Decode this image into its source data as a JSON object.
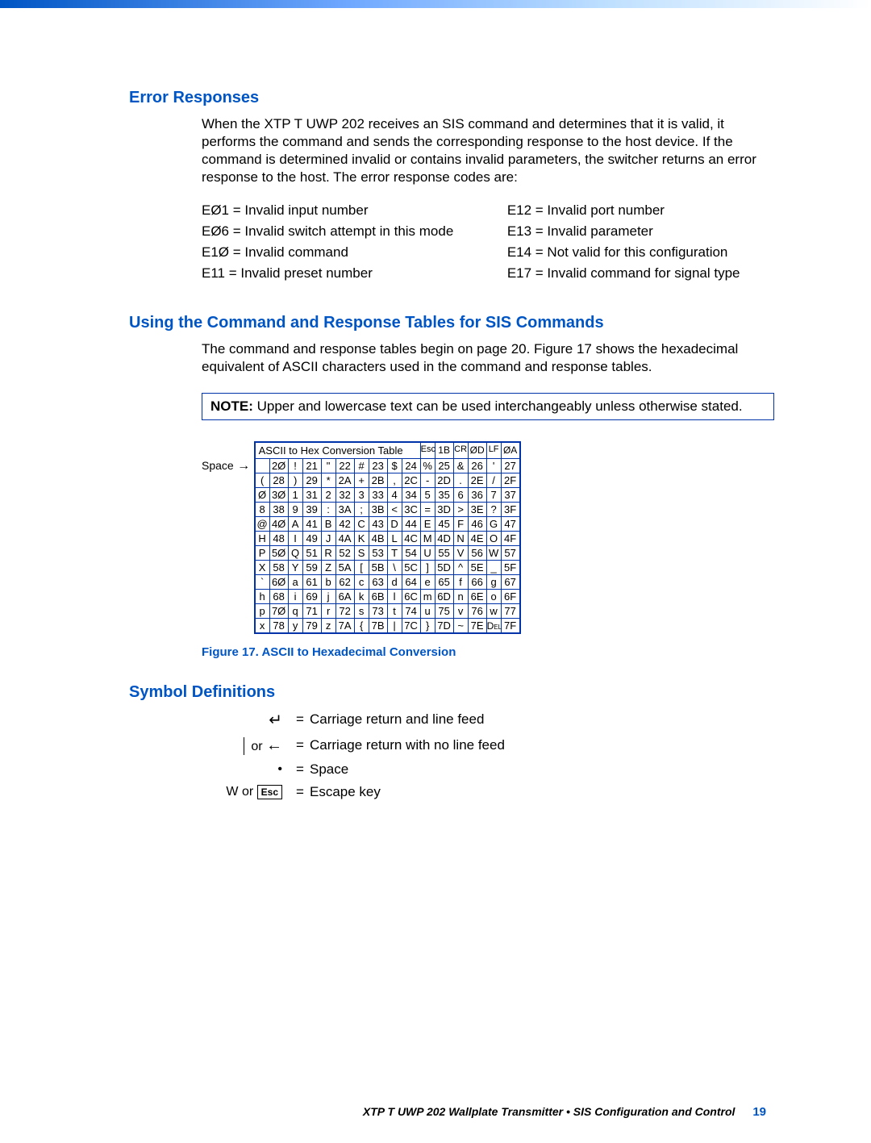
{
  "errorResponses": {
    "heading": "Error Responses",
    "para": "When the XTP T UWP 202 receives an SIS command and determines that it is valid, it performs the command and sends the corresponding response to the host device. If the command is determined invalid or contains invalid parameters, the switcher returns an error response to the host. The error response codes are:",
    "col1": [
      {
        "code": "EØ1",
        "desc": " = Invalid input number"
      },
      {
        "code": "EØ6",
        "desc": " = Invalid switch attempt in this mode"
      },
      {
        "code": "E1Ø",
        "desc": " = Invalid command"
      },
      {
        "code": "E11",
        "desc": " = Invalid preset number"
      }
    ],
    "col2": [
      {
        "code": "E12",
        "desc": " = Invalid port number"
      },
      {
        "code": "E13",
        "desc": " = Invalid parameter"
      },
      {
        "code": "E14",
        "desc": " = Not valid for this configuration"
      },
      {
        "code": "E17",
        "desc": " = Invalid command for signal type"
      }
    ]
  },
  "usingTables": {
    "heading": "Using the Command and Response Tables for SIS Commands",
    "para": "The command and response tables begin on page 20. Figure 17 shows the hexadecimal equivalent of ASCII characters used in the command and response tables.",
    "noteLabel": "NOTE:",
    "noteText": "   Upper and lowercase text can be used interchangeably unless otherwise stated."
  },
  "ascii": {
    "spaceLabel": "Space",
    "title": "ASCII to Hex Conversion Table",
    "titleExtra": [
      {
        "ch": "Esc",
        "hx": "1B"
      },
      {
        "ch": "CR",
        "hx": "ØD"
      },
      {
        "ch": "LF",
        "hx": "ØA"
      }
    ],
    "rows": [
      [
        {
          "ch": " ",
          "hx": "2Ø"
        },
        {
          "ch": "!",
          "hx": "21"
        },
        {
          "ch": "\"",
          "hx": "22"
        },
        {
          "ch": "#",
          "hx": "23"
        },
        {
          "ch": "$",
          "hx": "24"
        },
        {
          "ch": "%",
          "hx": "25"
        },
        {
          "ch": "&",
          "hx": "26"
        },
        {
          "ch": "'",
          "hx": "27"
        }
      ],
      [
        {
          "ch": "(",
          "hx": "28"
        },
        {
          "ch": ")",
          "hx": "29"
        },
        {
          "ch": "*",
          "hx": "2A"
        },
        {
          "ch": "+",
          "hx": "2B"
        },
        {
          "ch": ",",
          "hx": "2C"
        },
        {
          "ch": "-",
          "hx": "2D"
        },
        {
          "ch": ".",
          "hx": "2E"
        },
        {
          "ch": "/",
          "hx": "2F"
        }
      ],
      [
        {
          "ch": "Ø",
          "hx": "3Ø"
        },
        {
          "ch": "1",
          "hx": "31"
        },
        {
          "ch": "2",
          "hx": "32"
        },
        {
          "ch": "3",
          "hx": "33"
        },
        {
          "ch": "4",
          "hx": "34"
        },
        {
          "ch": "5",
          "hx": "35"
        },
        {
          "ch": "6",
          "hx": "36"
        },
        {
          "ch": "7",
          "hx": "37"
        }
      ],
      [
        {
          "ch": "8",
          "hx": "38"
        },
        {
          "ch": "9",
          "hx": "39"
        },
        {
          "ch": ":",
          "hx": "3A"
        },
        {
          "ch": ";",
          "hx": "3B"
        },
        {
          "ch": "<",
          "hx": "3C"
        },
        {
          "ch": "=",
          "hx": "3D"
        },
        {
          "ch": ">",
          "hx": "3E"
        },
        {
          "ch": "?",
          "hx": "3F"
        }
      ],
      [
        {
          "ch": "@",
          "hx": "4Ø"
        },
        {
          "ch": "A",
          "hx": "41"
        },
        {
          "ch": "B",
          "hx": "42"
        },
        {
          "ch": "C",
          "hx": "43"
        },
        {
          "ch": "D",
          "hx": "44"
        },
        {
          "ch": "E",
          "hx": "45"
        },
        {
          "ch": "F",
          "hx": "46"
        },
        {
          "ch": "G",
          "hx": "47"
        }
      ],
      [
        {
          "ch": "H",
          "hx": "48"
        },
        {
          "ch": "I",
          "hx": "49"
        },
        {
          "ch": "J",
          "hx": "4A"
        },
        {
          "ch": "K",
          "hx": "4B"
        },
        {
          "ch": "L",
          "hx": "4C"
        },
        {
          "ch": "M",
          "hx": "4D"
        },
        {
          "ch": "N",
          "hx": "4E"
        },
        {
          "ch": "O",
          "hx": "4F"
        }
      ],
      [
        {
          "ch": "P",
          "hx": "5Ø"
        },
        {
          "ch": "Q",
          "hx": "51"
        },
        {
          "ch": "R",
          "hx": "52"
        },
        {
          "ch": "S",
          "hx": "53"
        },
        {
          "ch": "T",
          "hx": "54"
        },
        {
          "ch": "U",
          "hx": "55"
        },
        {
          "ch": "V",
          "hx": "56"
        },
        {
          "ch": "W",
          "hx": "57"
        }
      ],
      [
        {
          "ch": "X",
          "hx": "58"
        },
        {
          "ch": "Y",
          "hx": "59"
        },
        {
          "ch": "Z",
          "hx": "5A"
        },
        {
          "ch": "[",
          "hx": "5B"
        },
        {
          "ch": "\\",
          "hx": "5C"
        },
        {
          "ch": "]",
          "hx": "5D"
        },
        {
          "ch": "^",
          "hx": "5E"
        },
        {
          "ch": "_",
          "hx": "5F"
        }
      ],
      [
        {
          "ch": "`",
          "hx": "6Ø"
        },
        {
          "ch": "a",
          "hx": "61"
        },
        {
          "ch": "b",
          "hx": "62"
        },
        {
          "ch": "c",
          "hx": "63"
        },
        {
          "ch": "d",
          "hx": "64"
        },
        {
          "ch": "e",
          "hx": "65"
        },
        {
          "ch": "f",
          "hx": "66"
        },
        {
          "ch": "g",
          "hx": "67"
        }
      ],
      [
        {
          "ch": "h",
          "hx": "68"
        },
        {
          "ch": "i",
          "hx": "69"
        },
        {
          "ch": "j",
          "hx": "6A"
        },
        {
          "ch": "k",
          "hx": "6B"
        },
        {
          "ch": "l",
          "hx": "6C"
        },
        {
          "ch": "m",
          "hx": "6D"
        },
        {
          "ch": "n",
          "hx": "6E"
        },
        {
          "ch": "o",
          "hx": "6F"
        }
      ],
      [
        {
          "ch": "p",
          "hx": "7Ø"
        },
        {
          "ch": "q",
          "hx": "71"
        },
        {
          "ch": "r",
          "hx": "72"
        },
        {
          "ch": "s",
          "hx": "73"
        },
        {
          "ch": "t",
          "hx": "74"
        },
        {
          "ch": "u",
          "hx": "75"
        },
        {
          "ch": "v",
          "hx": "76"
        },
        {
          "ch": "w",
          "hx": "77"
        }
      ],
      [
        {
          "ch": "x",
          "hx": "78"
        },
        {
          "ch": "y",
          "hx": "79"
        },
        {
          "ch": "z",
          "hx": "7A"
        },
        {
          "ch": "{",
          "hx": "7B"
        },
        {
          "ch": "|",
          "hx": "7C"
        },
        {
          "ch": "}",
          "hx": "7D"
        },
        {
          "ch": "~",
          "hx": "7E"
        },
        {
          "ch": "Del",
          "hx": "7F",
          "small": true
        }
      ]
    ],
    "caption": "Figure 17.   ASCII to Hexadecimal Conversion"
  },
  "symbols": {
    "heading": "Symbol Definitions",
    "rows": [
      {
        "left_html": "<span style='font-size:20px;'>↵</span>",
        "desc": "Carriage return and line feed"
      },
      {
        "left_html": "<span class='pipe'></span> or <span style='font-size:20px;'>←</span>",
        "desc": "Carriage return with no line feed"
      },
      {
        "left_html": "•",
        "desc": "Space"
      },
      {
        "left_html": "W or <span class='esc-box'>Esc</span>",
        "desc": "Escape key"
      }
    ]
  },
  "footer": {
    "text": "XTP T UWP 202 Wallplate Transmitter • SIS Configuration and Control",
    "page": "19"
  }
}
